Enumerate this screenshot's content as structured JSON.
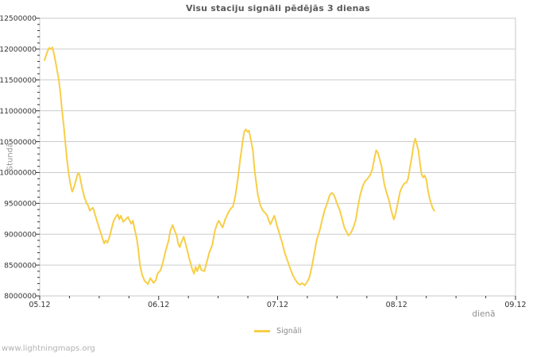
{
  "page": {
    "footer": "www.lightningmaps.org"
  },
  "style": {
    "line_color": "#F8CE46",
    "grid_color": "#CCCCCC",
    "border_color": "#C8C8C8",
    "tick_color": "#333333",
    "tick_label_color": "#333333",
    "title_color": "#5A5A5A",
    "muted_text_color": "#8F8F8F",
    "footer_color": "#B2B2B2",
    "background": "#FFFFFF"
  },
  "chart_data": {
    "type": "line",
    "title": "Visu staciju signāli pēdējās 3 dienas",
    "xlabel": "dienā",
    "ylabel": "Stundā",
    "grid": "horizontal-only",
    "legend_position": "bottom-center",
    "legend": [
      {
        "name": "Signāli",
        "color": "#F8CE46"
      }
    ],
    "x_axis": {
      "tick_labels": [
        "05.12",
        "06.12",
        "07.12",
        "08.12",
        "09.12"
      ],
      "tick_days": [
        0,
        1,
        2,
        3,
        4
      ],
      "range_days": [
        0,
        4
      ],
      "minor_step_days": 0.25
    },
    "y_axis": {
      "range": [
        8000000,
        12500000
      ],
      "major_step": 500000,
      "minor_step": 100000,
      "tick_labels": [
        "8000000",
        "8500000",
        "9000000",
        "9500000",
        "10000000",
        "10500000",
        "11000000",
        "11500000",
        "12000000",
        "12500000"
      ]
    },
    "series": [
      {
        "name": "Signāli",
        "color": "#F8CE46",
        "points": [
          [
            0.04,
            11820000
          ],
          [
            0.054,
            11900000
          ],
          [
            0.067,
            11970000
          ],
          [
            0.08,
            12020000
          ],
          [
            0.094,
            12000000
          ],
          [
            0.107,
            12030000
          ],
          [
            0.12,
            11920000
          ],
          [
            0.14,
            11720000
          ],
          [
            0.161,
            11500000
          ],
          [
            0.174,
            11280000
          ],
          [
            0.187,
            11020000
          ],
          [
            0.201,
            10780000
          ],
          [
            0.214,
            10520000
          ],
          [
            0.227,
            10250000
          ],
          [
            0.241,
            10020000
          ],
          [
            0.254,
            9860000
          ],
          [
            0.268,
            9720000
          ],
          [
            0.274,
            9690000
          ],
          [
            0.288,
            9760000
          ],
          [
            0.301,
            9850000
          ],
          [
            0.321,
            9990000
          ],
          [
            0.334,
            9970000
          ],
          [
            0.355,
            9760000
          ],
          [
            0.375,
            9600000
          ],
          [
            0.395,
            9500000
          ],
          [
            0.408,
            9460000
          ],
          [
            0.421,
            9380000
          ],
          [
            0.435,
            9410000
          ],
          [
            0.448,
            9430000
          ],
          [
            0.468,
            9300000
          ],
          [
            0.488,
            9170000
          ],
          [
            0.508,
            9050000
          ],
          [
            0.528,
            8930000
          ],
          [
            0.542,
            8850000
          ],
          [
            0.555,
            8900000
          ],
          [
            0.569,
            8860000
          ],
          [
            0.589,
            8970000
          ],
          [
            0.602,
            9070000
          ],
          [
            0.622,
            9220000
          ],
          [
            0.642,
            9290000
          ],
          [
            0.656,
            9320000
          ],
          [
            0.669,
            9240000
          ],
          [
            0.682,
            9300000
          ],
          [
            0.702,
            9200000
          ],
          [
            0.722,
            9240000
          ],
          [
            0.742,
            9280000
          ],
          [
            0.756,
            9220000
          ],
          [
            0.769,
            9170000
          ],
          [
            0.783,
            9220000
          ],
          [
            0.796,
            9100000
          ],
          [
            0.816,
            8930000
          ],
          [
            0.829,
            8750000
          ],
          [
            0.843,
            8500000
          ],
          [
            0.863,
            8330000
          ],
          [
            0.883,
            8240000
          ],
          [
            0.91,
            8190000
          ],
          [
            0.93,
            8290000
          ],
          [
            0.957,
            8210000
          ],
          [
            0.977,
            8260000
          ],
          [
            0.99,
            8360000
          ],
          [
            1.017,
            8420000
          ],
          [
            1.037,
            8550000
          ],
          [
            1.057,
            8720000
          ],
          [
            1.084,
            8900000
          ],
          [
            1.097,
            9050000
          ],
          [
            1.117,
            9150000
          ],
          [
            1.13,
            9080000
          ],
          [
            1.151,
            8980000
          ],
          [
            1.164,
            8850000
          ],
          [
            1.177,
            8790000
          ],
          [
            1.191,
            8870000
          ],
          [
            1.211,
            8960000
          ],
          [
            1.237,
            8770000
          ],
          [
            1.258,
            8600000
          ],
          [
            1.284,
            8420000
          ],
          [
            1.298,
            8360000
          ],
          [
            1.311,
            8470000
          ],
          [
            1.324,
            8400000
          ],
          [
            1.344,
            8510000
          ],
          [
            1.358,
            8420000
          ],
          [
            1.385,
            8400000
          ],
          [
            1.405,
            8550000
          ],
          [
            1.425,
            8700000
          ],
          [
            1.452,
            8830000
          ],
          [
            1.472,
            9050000
          ],
          [
            1.492,
            9170000
          ],
          [
            1.505,
            9220000
          ],
          [
            1.525,
            9150000
          ],
          [
            1.538,
            9110000
          ],
          [
            1.559,
            9240000
          ],
          [
            1.585,
            9350000
          ],
          [
            1.605,
            9410000
          ],
          [
            1.625,
            9450000
          ],
          [
            1.645,
            9620000
          ],
          [
            1.666,
            9900000
          ],
          [
            1.686,
            10220000
          ],
          [
            1.706,
            10500000
          ],
          [
            1.719,
            10660000
          ],
          [
            1.732,
            10700000
          ],
          [
            1.746,
            10660000
          ],
          [
            1.759,
            10680000
          ],
          [
            1.773,
            10550000
          ],
          [
            1.793,
            10350000
          ],
          [
            1.806,
            10050000
          ],
          [
            1.819,
            9850000
          ],
          [
            1.833,
            9650000
          ],
          [
            1.853,
            9480000
          ],
          [
            1.873,
            9390000
          ],
          [
            1.893,
            9350000
          ],
          [
            1.913,
            9300000
          ],
          [
            1.926,
            9220000
          ],
          [
            1.94,
            9160000
          ],
          [
            1.96,
            9250000
          ],
          [
            1.973,
            9300000
          ],
          [
            1.993,
            9150000
          ],
          [
            2.02,
            8980000
          ],
          [
            2.04,
            8850000
          ],
          [
            2.06,
            8700000
          ],
          [
            2.087,
            8550000
          ],
          [
            2.107,
            8440000
          ],
          [
            2.127,
            8340000
          ],
          [
            2.147,
            8270000
          ],
          [
            2.167,
            8210000
          ],
          [
            2.187,
            8180000
          ],
          [
            2.207,
            8210000
          ],
          [
            2.227,
            8170000
          ],
          [
            2.247,
            8220000
          ],
          [
            2.267,
            8300000
          ],
          [
            2.288,
            8470000
          ],
          [
            2.308,
            8680000
          ],
          [
            2.328,
            8900000
          ],
          [
            2.355,
            9070000
          ],
          [
            2.375,
            9240000
          ],
          [
            2.395,
            9390000
          ],
          [
            2.421,
            9520000
          ],
          [
            2.435,
            9620000
          ],
          [
            2.455,
            9670000
          ],
          [
            2.468,
            9650000
          ],
          [
            2.482,
            9600000
          ],
          [
            2.495,
            9520000
          ],
          [
            2.522,
            9390000
          ],
          [
            2.542,
            9250000
          ],
          [
            2.562,
            9100000
          ],
          [
            2.582,
            9030000
          ],
          [
            2.595,
            8980000
          ],
          [
            2.615,
            9020000
          ],
          [
            2.635,
            9100000
          ],
          [
            2.656,
            9220000
          ],
          [
            2.676,
            9450000
          ],
          [
            2.696,
            9650000
          ],
          [
            2.716,
            9780000
          ],
          [
            2.736,
            9860000
          ],
          [
            2.756,
            9900000
          ],
          [
            2.776,
            9950000
          ],
          [
            2.796,
            10050000
          ],
          [
            2.816,
            10250000
          ],
          [
            2.829,
            10360000
          ],
          [
            2.843,
            10320000
          ],
          [
            2.863,
            10180000
          ],
          [
            2.876,
            10080000
          ],
          [
            2.896,
            9820000
          ],
          [
            2.916,
            9670000
          ],
          [
            2.936,
            9550000
          ],
          [
            2.957,
            9370000
          ],
          [
            2.977,
            9240000
          ],
          [
            2.99,
            9320000
          ],
          [
            3.01,
            9500000
          ],
          [
            3.03,
            9690000
          ],
          [
            3.05,
            9780000
          ],
          [
            3.07,
            9830000
          ],
          [
            3.084,
            9840000
          ],
          [
            3.097,
            9900000
          ],
          [
            3.11,
            10050000
          ],
          [
            3.13,
            10270000
          ],
          [
            3.144,
            10450000
          ],
          [
            3.157,
            10550000
          ],
          [
            3.171,
            10450000
          ],
          [
            3.184,
            10350000
          ],
          [
            3.197,
            10150000
          ],
          [
            3.211,
            9970000
          ],
          [
            3.224,
            9920000
          ],
          [
            3.237,
            9950000
          ],
          [
            3.251,
            9880000
          ],
          [
            3.264,
            9710000
          ],
          [
            3.278,
            9580000
          ],
          [
            3.291,
            9500000
          ],
          [
            3.304,
            9420000
          ],
          [
            3.318,
            9380000
          ]
        ]
      }
    ]
  }
}
